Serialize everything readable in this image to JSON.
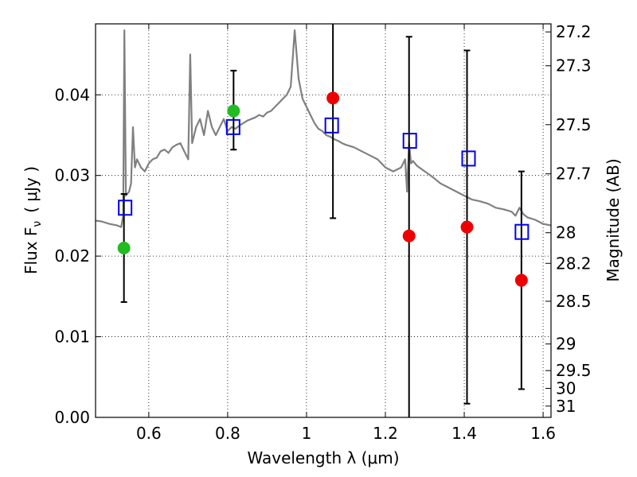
{
  "chart_data": {
    "type": "scatter",
    "xlabel": "Wavelength  λ (μm)",
    "ylabel": "Flux  F",
    "ylabel_sub": "ν",
    "ylabel_unit": "( μJy )",
    "ylabel_right": "Magnitude (AB)",
    "xlim": [
      0.465,
      1.62
    ],
    "ylim": [
      0.0,
      0.0488
    ],
    "grid": true,
    "x_ticks": [
      {
        "value": 0.6,
        "label": "0.6"
      },
      {
        "value": 0.8,
        "label": "0.8"
      },
      {
        "value": 1.0,
        "label": "1"
      },
      {
        "value": 1.2,
        "label": "1.2"
      },
      {
        "value": 1.4,
        "label": "1.4"
      },
      {
        "value": 1.6,
        "label": "1.6"
      }
    ],
    "y_ticks": [
      {
        "value": 0.0,
        "label": "0.00"
      },
      {
        "value": 0.01,
        "label": "0.01"
      },
      {
        "value": 0.02,
        "label": "0.02"
      },
      {
        "value": 0.03,
        "label": "0.03"
      },
      {
        "value": 0.04,
        "label": "0.04"
      }
    ],
    "mag_ticks": [
      {
        "flux": 0.0478,
        "label": "27.2"
      },
      {
        "flux": 0.0436,
        "label": "27.3"
      },
      {
        "flux": 0.0363,
        "label": "27.5"
      },
      {
        "flux": 0.0302,
        "label": "27.7"
      },
      {
        "flux": 0.0229,
        "label": "28"
      },
      {
        "flux": 0.0191,
        "label": "28.2"
      },
      {
        "flux": 0.0144,
        "label": "28.5"
      },
      {
        "flux": 0.0091,
        "label": "29"
      },
      {
        "flux": 0.0058,
        "label": "29.5"
      },
      {
        "flux": 0.0036,
        "label": "30"
      },
      {
        "flux": 0.0014,
        "label": "31"
      }
    ],
    "series": [
      {
        "name": "model-sed",
        "type": "line",
        "color": "#808080",
        "x": [
          0.465,
          0.48,
          0.5,
          0.52,
          0.53,
          0.535,
          0.538,
          0.542,
          0.55,
          0.555,
          0.56,
          0.565,
          0.57,
          0.58,
          0.59,
          0.6,
          0.61,
          0.62,
          0.63,
          0.64,
          0.65,
          0.66,
          0.67,
          0.68,
          0.69,
          0.7,
          0.705,
          0.71,
          0.72,
          0.73,
          0.74,
          0.75,
          0.76,
          0.77,
          0.78,
          0.79,
          0.8,
          0.81,
          0.82,
          0.83,
          0.84,
          0.85,
          0.86,
          0.87,
          0.88,
          0.89,
          0.9,
          0.91,
          0.92,
          0.93,
          0.94,
          0.95,
          0.96,
          0.97,
          0.98,
          0.99,
          1.0,
          1.01,
          1.02,
          1.03,
          1.04,
          1.05,
          1.06,
          1.07,
          1.08,
          1.09,
          1.1,
          1.12,
          1.14,
          1.16,
          1.18,
          1.2,
          1.22,
          1.24,
          1.25,
          1.255,
          1.26,
          1.265,
          1.27,
          1.28,
          1.3,
          1.32,
          1.34,
          1.36,
          1.38,
          1.4,
          1.42,
          1.44,
          1.46,
          1.48,
          1.5,
          1.52,
          1.53,
          1.54,
          1.55,
          1.56,
          1.58,
          1.6,
          1.62
        ],
        "y": [
          0.0244,
          0.0243,
          0.024,
          0.0238,
          0.0236,
          0.025,
          0.048,
          0.0275,
          0.028,
          0.029,
          0.036,
          0.031,
          0.032,
          0.031,
          0.0305,
          0.0315,
          0.032,
          0.0322,
          0.033,
          0.0332,
          0.0328,
          0.0335,
          0.0338,
          0.034,
          0.033,
          0.032,
          0.045,
          0.034,
          0.036,
          0.037,
          0.035,
          0.038,
          0.036,
          0.035,
          0.036,
          0.037,
          0.0355,
          0.036,
          0.0358,
          0.0362,
          0.0365,
          0.0368,
          0.037,
          0.0372,
          0.0375,
          0.0373,
          0.0378,
          0.038,
          0.0385,
          0.039,
          0.0395,
          0.04,
          0.041,
          0.048,
          0.042,
          0.0395,
          0.0385,
          0.0375,
          0.0365,
          0.0358,
          0.0355,
          0.035,
          0.0348,
          0.0345,
          0.0343,
          0.034,
          0.0338,
          0.0335,
          0.033,
          0.0325,
          0.032,
          0.031,
          0.0305,
          0.031,
          0.032,
          0.028,
          0.034,
          0.0315,
          0.0318,
          0.0312,
          0.0305,
          0.0298,
          0.029,
          0.0285,
          0.028,
          0.0275,
          0.027,
          0.0268,
          0.0265,
          0.026,
          0.0258,
          0.0255,
          0.025,
          0.026,
          0.0252,
          0.0248,
          0.0245,
          0.024,
          0.0238
        ]
      },
      {
        "name": "observed-flux",
        "type": "errorbar",
        "color": "#ee0000",
        "points": [
          {
            "x": 1.067,
            "y": 0.0396,
            "lo": 0.0247,
            "hi": 0.0505
          },
          {
            "x": 1.26,
            "y": 0.0225,
            "lo": -0.0005,
            "hi": 0.0472
          },
          {
            "x": 1.407,
            "y": 0.0236,
            "lo": 0.0017,
            "hi": 0.0455
          },
          {
            "x": 1.545,
            "y": 0.017,
            "lo": 0.0035,
            "hi": 0.0305
          }
        ]
      },
      {
        "name": "observed-flux-optical",
        "type": "errorbar",
        "color": "#22bb22",
        "points": [
          {
            "x": 0.537,
            "y": 0.021,
            "lo": 0.0143,
            "hi": 0.0277
          },
          {
            "x": 0.815,
            "y": 0.038,
            "lo": 0.0332,
            "hi": 0.043
          }
        ]
      },
      {
        "name": "model-bandpass",
        "type": "square",
        "color": "#0000ee",
        "points": [
          {
            "x": 0.54,
            "y": 0.026
          },
          {
            "x": 0.814,
            "y": 0.036
          },
          {
            "x": 1.064,
            "y": 0.0362
          },
          {
            "x": 1.262,
            "y": 0.0343
          },
          {
            "x": 1.411,
            "y": 0.0321
          },
          {
            "x": 1.546,
            "y": 0.023
          }
        ]
      }
    ]
  }
}
